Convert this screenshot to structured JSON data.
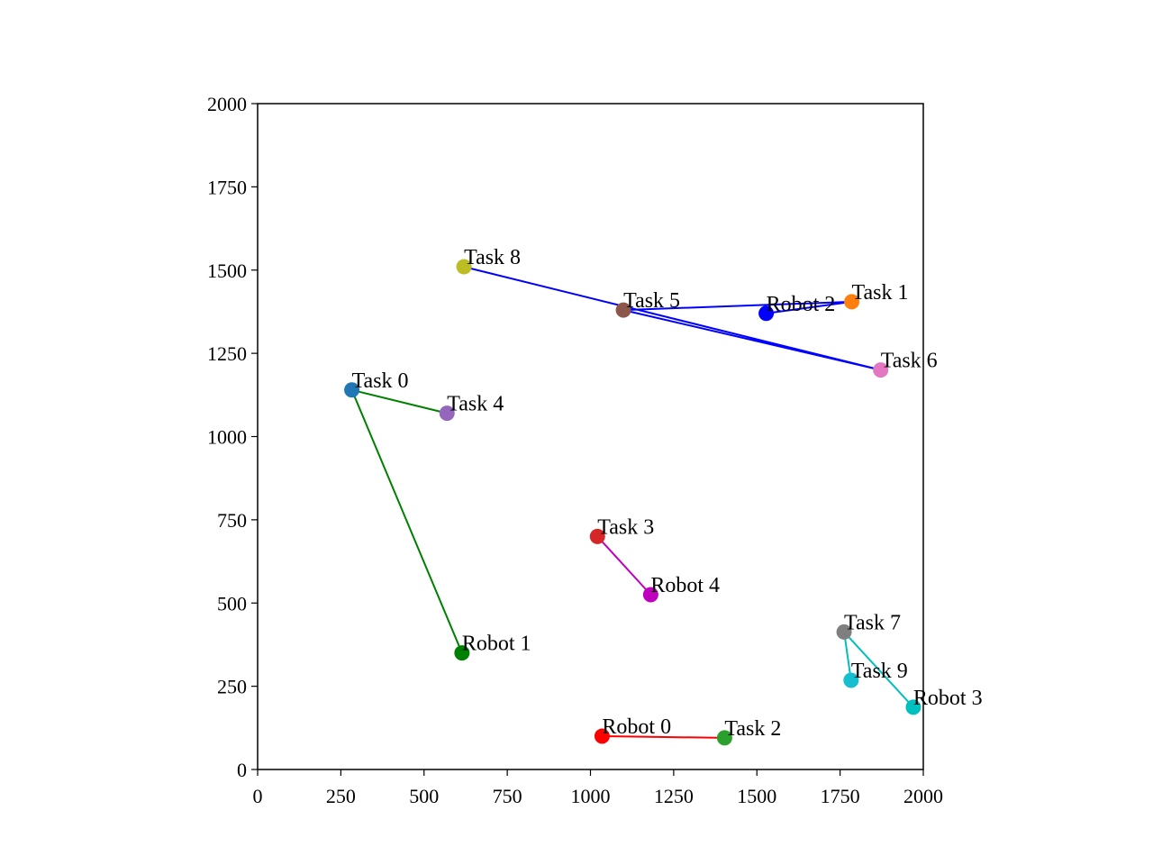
{
  "chart_data": {
    "type": "scatter",
    "title": "",
    "xlabel": "",
    "ylabel": "",
    "xlim": [
      0,
      2000
    ],
    "ylim": [
      0,
      2000
    ],
    "xticks": [
      0,
      250,
      500,
      750,
      1000,
      1250,
      1500,
      1750,
      2000
    ],
    "yticks": [
      0,
      250,
      500,
      750,
      1000,
      1250,
      1500,
      1750,
      2000
    ],
    "grid": false,
    "points": [
      {
        "label": "Task 0",
        "x": 283,
        "y": 1140,
        "color": "#1f77b4"
      },
      {
        "label": "Task 1",
        "x": 1785,
        "y": 1405,
        "color": "#ff7f0e"
      },
      {
        "label": "Task 2",
        "x": 1403,
        "y": 95,
        "color": "#2ca02c"
      },
      {
        "label": "Task 3",
        "x": 1021,
        "y": 700,
        "color": "#d62728"
      },
      {
        "label": "Task 4",
        "x": 569,
        "y": 1070,
        "color": "#9467bd"
      },
      {
        "label": "Task 5",
        "x": 1099,
        "y": 1380,
        "color": "#8c564b"
      },
      {
        "label": "Task 6",
        "x": 1872,
        "y": 1200,
        "color": "#e377c2"
      },
      {
        "label": "Task 7",
        "x": 1762,
        "y": 413,
        "color": "#7f7f7f"
      },
      {
        "label": "Task 8",
        "x": 620,
        "y": 1510,
        "color": "#bcbd22"
      },
      {
        "label": "Task 9",
        "x": 1783,
        "y": 268,
        "color": "#17becf"
      },
      {
        "label": "Robot 0",
        "x": 1035,
        "y": 100,
        "color": "#ff0000"
      },
      {
        "label": "Robot 1",
        "x": 614,
        "y": 350,
        "color": "#008000"
      },
      {
        "label": "Robot 2",
        "x": 1528,
        "y": 1370,
        "color": "#0000ff"
      },
      {
        "label": "Robot 3",
        "x": 1970,
        "y": 187,
        "color": "#00bfbf"
      },
      {
        "label": "Robot 4",
        "x": 1181,
        "y": 525,
        "color": "#bf00bf"
      }
    ],
    "routes": [
      {
        "name": "Robot 0",
        "color": "#ff0000",
        "path": [
          "Robot 0",
          "Task 2"
        ]
      },
      {
        "name": "Robot 1",
        "color": "#008000",
        "path": [
          "Robot 1",
          "Task 0",
          "Task 4"
        ]
      },
      {
        "name": "Robot 2",
        "color": "#0000ff",
        "path": [
          "Robot 2",
          "Task 1",
          "Task 5",
          "Task 6",
          "Task 8"
        ]
      },
      {
        "name": "Robot 3",
        "color": "#00bfbf",
        "path": [
          "Robot 3",
          "Task 7",
          "Task 9"
        ]
      },
      {
        "name": "Robot 4",
        "color": "#bf00bf",
        "path": [
          "Robot 4",
          "Task 3"
        ]
      }
    ]
  }
}
